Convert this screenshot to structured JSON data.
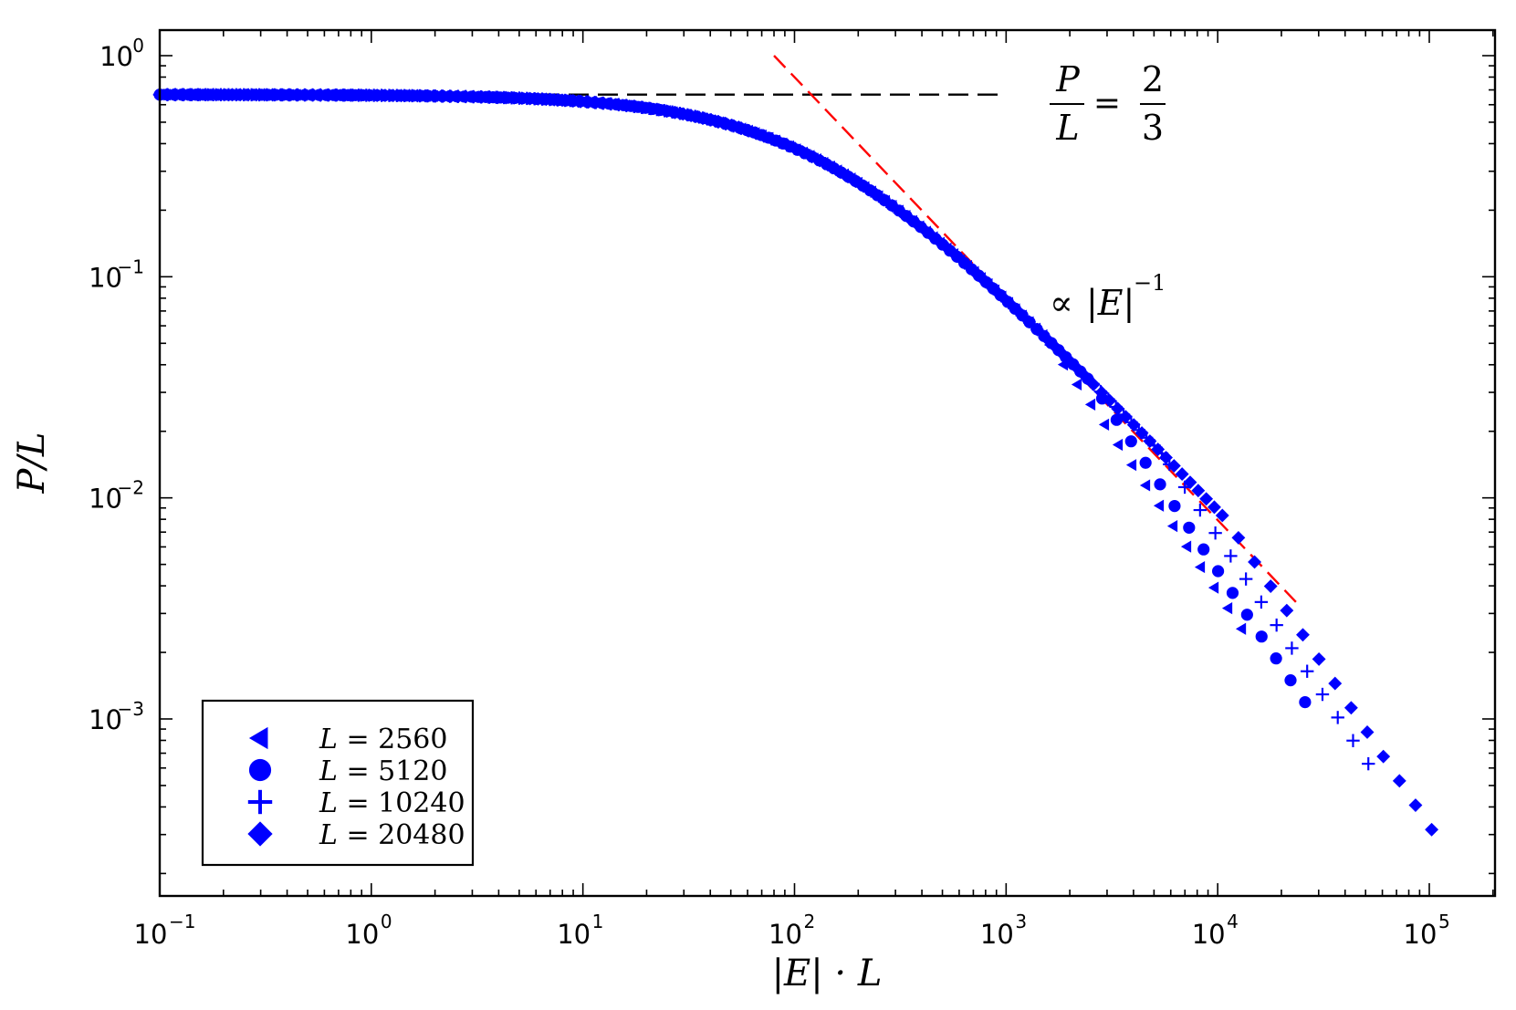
{
  "chart_data": {
    "type": "scatter",
    "scale": {
      "x": "log",
      "y": "log"
    },
    "xlim": [
      0.1,
      200000
    ],
    "ylim": [
      0.00018,
      1.25
    ],
    "xlabel": "|E| · L",
    "ylabel": "P/L",
    "x_ticks": [
      {
        "value": 0.1,
        "base": "10",
        "exp": "−1"
      },
      {
        "value": 1,
        "base": "10",
        "exp": "0"
      },
      {
        "value": 10,
        "base": "10",
        "exp": "1"
      },
      {
        "value": 100,
        "base": "10",
        "exp": "2"
      },
      {
        "value": 1000,
        "base": "10",
        "exp": "3"
      },
      {
        "value": 10000,
        "base": "10",
        "exp": "4"
      },
      {
        "value": 100000,
        "base": "10",
        "exp": "5"
      }
    ],
    "y_ticks": [
      {
        "value": 1,
        "base": "10",
        "exp": "0"
      },
      {
        "value": 0.1,
        "base": "10",
        "exp": "−1"
      },
      {
        "value": 0.01,
        "base": "10",
        "exp": "−2"
      },
      {
        "value": 0.001,
        "base": "10",
        "exp": "−3"
      }
    ],
    "plateau_value": 0.6667,
    "crossover_scale": 133,
    "series": [
      {
        "name": "L = 2560",
        "L_value": "2560",
        "marker": "triangle-left",
        "color": "#0000ff",
        "x_max": 14000,
        "tail_start": 1500
      },
      {
        "name": "L = 5120",
        "L_value": "5120",
        "marker": "circle",
        "color": "#0000ff",
        "x_max": 28000,
        "tail_start": 2500
      },
      {
        "name": "L = 10240",
        "L_value": "10240",
        "marker": "plus",
        "color": "#0000ff",
        "x_max": 56000,
        "tail_start": 5500
      },
      {
        "name": "L = 20480",
        "L_value": "20480",
        "marker": "diamond",
        "color": "#0000ff",
        "x_max": 112000,
        "tail_start": 11000
      }
    ],
    "reference_lines": [
      {
        "name": "plateau",
        "style": "dashed",
        "color": "#000000",
        "x": [
          0.1,
          1000
        ],
        "y": [
          0.6667,
          0.6667
        ]
      },
      {
        "name": "power-law",
        "style": "dashed",
        "color": "#ff0000",
        "x": [
          80,
          24000
        ],
        "y": [
          1.0,
          0.0033
        ]
      }
    ],
    "annotations": {
      "plateau": {
        "num": "P",
        "den": "L",
        "eq": "=",
        "rnum": "2",
        "rden": "3"
      },
      "power_law": {
        "prop": "∝",
        "expr": "|E|",
        "exp": "−1"
      }
    },
    "legend": {
      "position": "bottom-left"
    }
  }
}
